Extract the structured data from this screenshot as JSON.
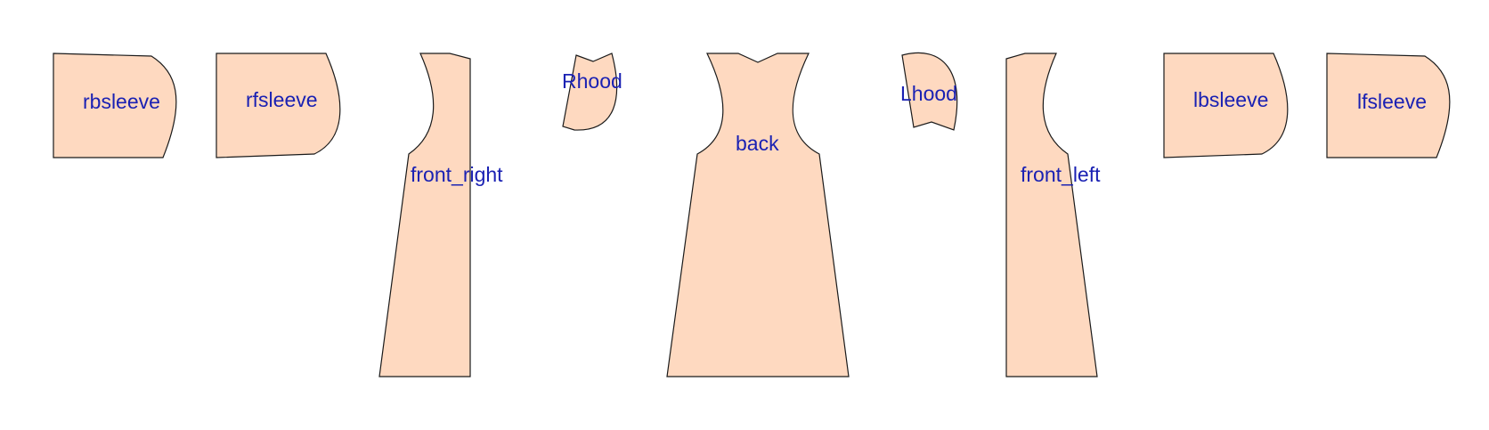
{
  "colors": {
    "piece_fill": "#fed9c0",
    "label": "#1a21b3"
  },
  "pieces": {
    "rbsleeve": {
      "label": "rbsleeve"
    },
    "rfsleeve": {
      "label": "rfsleeve"
    },
    "front_right": {
      "label": "front_right"
    },
    "rhood": {
      "label": "Rhood"
    },
    "back": {
      "label": "back"
    },
    "lhood": {
      "label": "Lhood"
    },
    "front_left": {
      "label": "front_left"
    },
    "lbsleeve": {
      "label": "lbsleeve"
    },
    "lfsleeve": {
      "label": "lfsleeve"
    }
  }
}
